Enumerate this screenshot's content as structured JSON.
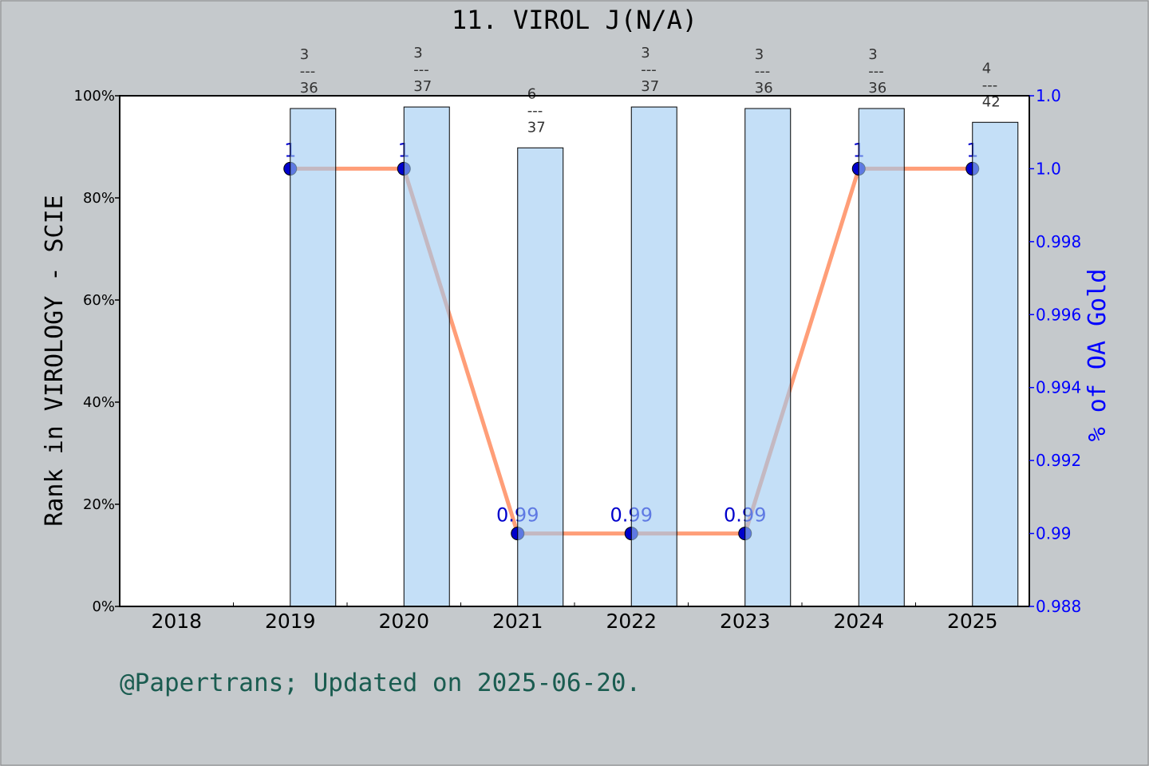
{
  "chart_data": {
    "type": "bar+line",
    "title": "11. VIROL J",
    "title_suffix": "(N/A)",
    "categories": [
      "2018",
      "2019",
      "2020",
      "2021",
      "2022",
      "2023",
      "2024",
      "2025"
    ],
    "bar_series": {
      "axis": "left",
      "values": [
        null,
        97.5,
        97.8,
        89.8,
        97.8,
        97.5,
        97.5,
        94.8
      ],
      "annotations": [
        null,
        [
          "3",
          "36"
        ],
        [
          "3",
          "37"
        ],
        [
          "6",
          "37"
        ],
        [
          "3",
          "37"
        ],
        [
          "3",
          "36"
        ],
        [
          "3",
          "36"
        ],
        [
          "4",
          "42"
        ]
      ],
      "color": "#c5e0f7"
    },
    "line_series": {
      "axis": "right",
      "values": [
        null,
        1.0,
        1.0,
        0.99,
        0.99,
        0.99,
        1.0,
        1.0
      ],
      "labels": [
        null,
        "1",
        "1",
        "0.99",
        "0.99",
        "0.99",
        "1",
        "1"
      ],
      "color": "#ff9e78",
      "marker_color": "#0000cc"
    },
    "ylabel": "Rank in VIROLOGY - SCIE",
    "ylim": [
      0,
      100
    ],
    "yticks": [
      "0%",
      "20%",
      "40%",
      "60%",
      "80%",
      "100%"
    ],
    "y2label": "% of OA Gold",
    "y2lim": [
      0.988,
      1.002
    ],
    "y2ticks": [
      "0.988",
      "0.99",
      "0.992",
      "0.994",
      "0.996",
      "0.998",
      "1.0",
      "1.0"
    ],
    "y2tick_values": [
      0.988,
      0.99,
      0.992,
      0.994,
      0.996,
      0.998,
      1.0,
      1.002
    ],
    "y2_color": "#0000ff",
    "grid": false
  },
  "footer": "@Papertrans; Updated on 2025-06-20.",
  "footer_color": "#1a5c50"
}
